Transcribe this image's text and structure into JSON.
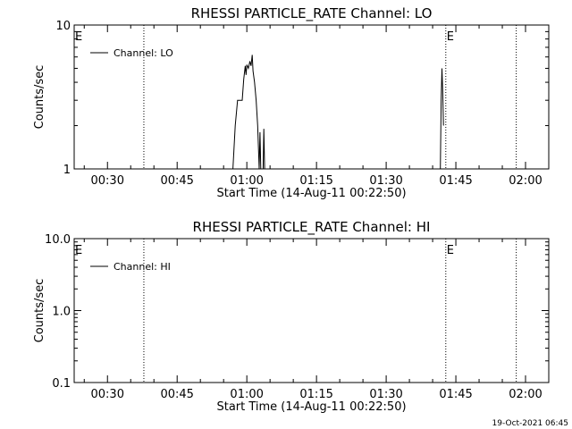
{
  "footer": {
    "timestamp": "19-Oct-2021 06:45"
  },
  "chart_data": [
    {
      "type": "line",
      "title": "RHESSI PARTICLE_RATE Channel: LO",
      "xlabel": "Start Time (14-Aug-11 00:22:50)",
      "ylabel": "Counts/sec",
      "x_scale": "time",
      "xlim": [
        "00:22:50",
        "02:05:00"
      ],
      "ylim": [
        1,
        10
      ],
      "y_scale": "log",
      "x_ticks": [
        "00:30",
        "00:45",
        "01:00",
        "01:15",
        "01:30",
        "01:45",
        "02:00"
      ],
      "y_ticks": [
        {
          "value": 1,
          "label": "1"
        },
        {
          "value": 10,
          "label": "10"
        }
      ],
      "legend": {
        "position": "top-left",
        "entries": [
          "Channel: LO"
        ]
      },
      "markers": [
        {
          "time": "00:37:50",
          "style": "dotted",
          "label": ""
        },
        {
          "time": "01:42:50",
          "style": "dotted",
          "label": "E"
        },
        {
          "time": "01:58:00",
          "style": "dotted",
          "label": ""
        }
      ],
      "corner_label": "E",
      "series": [
        {
          "name": "Channel: LO",
          "segments": [
            [
              [
                "00:57:00",
                1.0
              ],
              [
                "00:57:30",
                2.0
              ],
              [
                "00:58:00",
                3.0
              ],
              [
                "00:59:00",
                3.0
              ],
              [
                "00:59:20",
                4.2
              ],
              [
                "00:59:40",
                5.2
              ],
              [
                "00:59:50",
                4.5
              ],
              [
                "01:00:00",
                5.3
              ],
              [
                "01:00:20",
                5.0
              ],
              [
                "01:00:40",
                5.6
              ],
              [
                "01:00:55",
                5.2
              ],
              [
                "01:01:10",
                6.2
              ],
              [
                "01:01:20",
                4.8
              ],
              [
                "01:01:40",
                4.0
              ],
              [
                "01:02:00",
                3.0
              ],
              [
                "01:02:20",
                2.0
              ],
              [
                "01:02:40",
                1.0
              ]
            ],
            [
              [
                "01:02:40",
                1.0
              ],
              [
                "01:02:50",
                1.8
              ],
              [
                "01:03:00",
                1.0
              ]
            ],
            [
              [
                "01:03:30",
                1.0
              ],
              [
                "01:03:40",
                1.9
              ],
              [
                "01:03:50",
                1.0
              ]
            ],
            [
              [
                "01:41:40",
                1.0
              ],
              [
                "01:41:50",
                3.0
              ],
              [
                "01:42:00",
                5.0
              ],
              [
                "01:42:10",
                3.5
              ],
              [
                "01:42:20",
                2.0
              ]
            ]
          ]
        }
      ]
    },
    {
      "type": "line",
      "title": "RHESSI PARTICLE_RATE Channel: HI",
      "xlabel": "Start Time (14-Aug-11 00:22:50)",
      "ylabel": "Counts/sec",
      "x_scale": "time",
      "xlim": [
        "00:22:50",
        "02:05:00"
      ],
      "ylim": [
        0.1,
        10
      ],
      "y_scale": "log",
      "x_ticks": [
        "00:30",
        "00:45",
        "01:00",
        "01:15",
        "01:30",
        "01:45",
        "02:00"
      ],
      "y_ticks": [
        {
          "value": 0.1,
          "label": "0.1"
        },
        {
          "value": 1,
          "label": "1.0"
        },
        {
          "value": 10,
          "label": "10.0"
        }
      ],
      "legend": {
        "position": "top-left",
        "entries": [
          "Channel: HI"
        ]
      },
      "markers": [
        {
          "time": "00:37:50",
          "style": "dotted",
          "label": ""
        },
        {
          "time": "01:42:50",
          "style": "dotted",
          "label": "E"
        },
        {
          "time": "01:58:00",
          "style": "dotted",
          "label": ""
        }
      ],
      "corner_label": "E",
      "series": [
        {
          "name": "Channel: HI",
          "segments": []
        }
      ]
    }
  ]
}
